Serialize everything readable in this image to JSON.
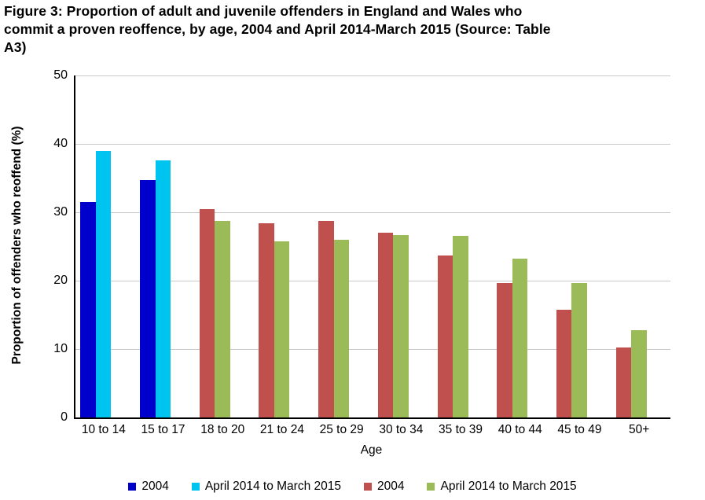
{
  "header": {
    "title_lines": [
      "Figure 3: Proportion of adult and juvenile offenders in England and Wales who",
      "commit a proven reoffence, by age, 2004 and April 2014-March 2015 (Source: Table",
      "A3)"
    ]
  },
  "chart_data": {
    "type": "bar",
    "title": "Figure 3: Proportion of adult and juvenile offenders in England and Wales who commit a proven reoffence, by age, 2004 and April 2014-March 2015 (Source: Table A3)",
    "xlabel": "Age",
    "ylabel": "Proportion of offenders who reoffend (%)",
    "ylim": [
      0,
      50
    ],
    "yticks": [
      0,
      10,
      20,
      30,
      40,
      50
    ],
    "grid": true,
    "legend_position": "bottom",
    "categories": [
      "10 to 14",
      "15 to 17",
      "18 to 20",
      "21 to 24",
      "25 to 29",
      "30 to 34",
      "35 to 39",
      "40 to 44",
      "45 to 49",
      "50+"
    ],
    "series": [
      {
        "name": "2004",
        "cohort": "juvenile",
        "color": "#0000CC",
        "values": [
          31.5,
          34.7,
          null,
          null,
          null,
          null,
          null,
          null,
          null,
          null
        ]
      },
      {
        "name": "April 2014 to March 2015",
        "cohort": "juvenile",
        "color": "#00C4F0",
        "values": [
          39.0,
          37.6,
          null,
          null,
          null,
          null,
          null,
          null,
          null,
          null
        ]
      },
      {
        "name": "2004",
        "cohort": "adult",
        "color": "#C0504D",
        "values": [
          null,
          null,
          30.5,
          28.4,
          28.7,
          27.0,
          23.7,
          19.6,
          15.8,
          10.2
        ]
      },
      {
        "name": "April 2014 to March 2015",
        "cohort": "adult",
        "color": "#9BBB59",
        "values": [
          null,
          null,
          28.7,
          25.8,
          26.0,
          26.7,
          26.5,
          23.2,
          19.6,
          12.8
        ]
      }
    ]
  }
}
